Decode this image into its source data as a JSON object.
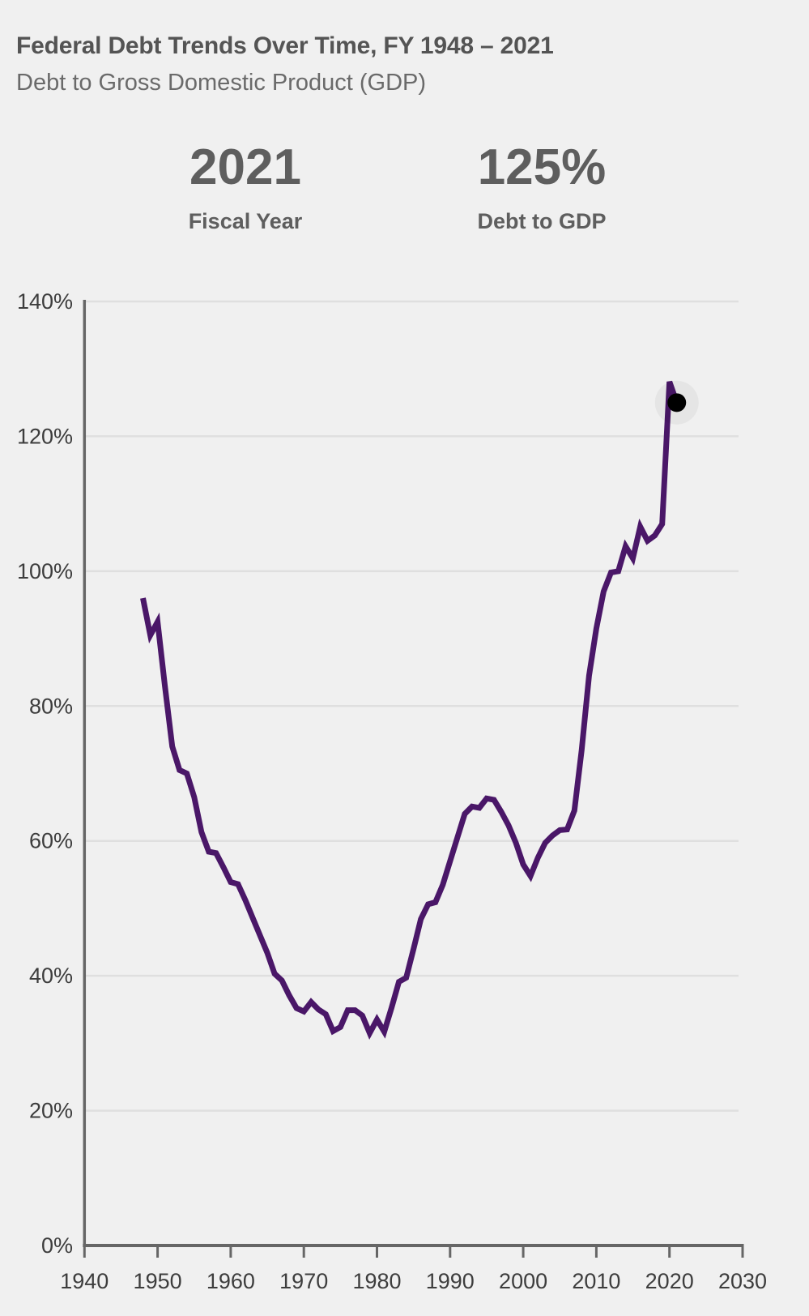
{
  "page": {
    "background": "#f0f0f0"
  },
  "header": {
    "title": "Federal Debt Trends Over Time, FY 1948 – 2021",
    "subtitle": "Debt to Gross Domestic Product (GDP)"
  },
  "stats": [
    {
      "value": "2021",
      "label": "Fiscal Year"
    },
    {
      "value": "125%",
      "label": "Debt to GDP"
    }
  ],
  "chart_data": {
    "type": "line",
    "title": "Federal Debt Trends Over Time, FY 1948 – 2021",
    "subtitle": "Debt to Gross Domestic Product (GDP)",
    "xlabel": "Fiscal Year",
    "ylabel": "Debt to GDP (%)",
    "xlim": [
      1940,
      2030
    ],
    "ylim": [
      0,
      140
    ],
    "x_ticks": [
      1940,
      1950,
      1960,
      1970,
      1980,
      1990,
      2000,
      2010,
      2020,
      2030
    ],
    "y_ticks": [
      0,
      20,
      40,
      60,
      80,
      100,
      120,
      140
    ],
    "y_tick_suffix": "%",
    "grid": true,
    "legend": false,
    "line_color": "#4a1768",
    "colors": {
      "grid": "#dfdfdf",
      "axis": "#666666",
      "tick_text": "#3d3d3d",
      "halo": "rgba(0,0,0,0.045)",
      "dot": "#000000"
    },
    "x": [
      1948,
      1949,
      1950,
      1951,
      1952,
      1953,
      1954,
      1955,
      1956,
      1957,
      1958,
      1959,
      1960,
      1961,
      1962,
      1963,
      1964,
      1965,
      1966,
      1967,
      1968,
      1969,
      1970,
      1971,
      1972,
      1973,
      1974,
      1975,
      1976,
      1977,
      1978,
      1979,
      1980,
      1981,
      1982,
      1983,
      1984,
      1985,
      1986,
      1987,
      1988,
      1989,
      1990,
      1991,
      1992,
      1993,
      1994,
      1995,
      1996,
      1997,
      1998,
      1999,
      2000,
      2001,
      2002,
      2003,
      2004,
      2005,
      2006,
      2007,
      2008,
      2009,
      2010,
      2011,
      2012,
      2013,
      2014,
      2015,
      2016,
      2017,
      2018,
      2019,
      2020,
      2021
    ],
    "series": [
      {
        "name": "Debt to GDP",
        "values": [
          96.0,
          90.5,
          92.5,
          83.0,
          74.0,
          70.5,
          70.0,
          66.5,
          61.3,
          58.4,
          58.2,
          56.1,
          53.9,
          53.6,
          51.2,
          48.6,
          46.0,
          43.4,
          40.3,
          39.3,
          37.1,
          35.2,
          34.7,
          36.1,
          35.0,
          34.3,
          31.8,
          32.4,
          34.9,
          34.9,
          34.1,
          31.5,
          33.5,
          31.7,
          35.3,
          39.1,
          39.7,
          44.0,
          48.4,
          50.6,
          50.9,
          53.5,
          57.0,
          60.5,
          64.0,
          65.1,
          64.9,
          66.3,
          66.1,
          64.3,
          62.3,
          59.7,
          56.5,
          54.8,
          57.5,
          59.7,
          60.8,
          61.6,
          61.7,
          64.5,
          73.5,
          84.5,
          91.5,
          97.0,
          99.8,
          100.0,
          103.7,
          101.9,
          106.6,
          104.5,
          105.3,
          107.0,
          128.1,
          125.0
        ]
      }
    ],
    "highlight_point": {
      "x": 2021,
      "y": 125,
      "label": "125%"
    }
  }
}
